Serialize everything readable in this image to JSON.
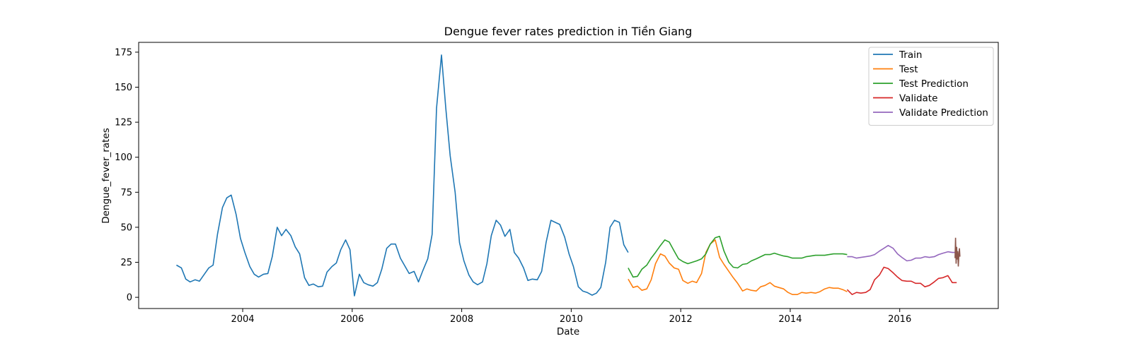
{
  "chart_data": {
    "type": "line",
    "title": "Dengue fever rates prediction in Tiền Giang",
    "xlabel": "Date",
    "ylabel": "Dengue_fever_rates",
    "xlim": [
      2002.1,
      2017.8
    ],
    "ylim": [
      -8,
      182
    ],
    "x_ticks": [
      2004,
      2006,
      2008,
      2010,
      2012,
      2014,
      2016
    ],
    "y_ticks": [
      0,
      25,
      50,
      75,
      100,
      125,
      150,
      175
    ],
    "grid": false,
    "legend": "top-right",
    "series": [
      {
        "name": "Train",
        "color": "#1f77b4",
        "x": [
          2002.79,
          2002.88,
          2002.96,
          2003.04,
          2003.13,
          2003.21,
          2003.29,
          2003.38,
          2003.46,
          2003.54,
          2003.63,
          2003.71,
          2003.79,
          2003.88,
          2003.96,
          2004.04,
          2004.13,
          2004.21,
          2004.29,
          2004.38,
          2004.46,
          2004.54,
          2004.63,
          2004.71,
          2004.79,
          2004.88,
          2004.96,
          2005.04,
          2005.13,
          2005.21,
          2005.29,
          2005.38,
          2005.46,
          2005.54,
          2005.63,
          2005.71,
          2005.79,
          2005.88,
          2005.96,
          2006.04,
          2006.13,
          2006.21,
          2006.29,
          2006.38,
          2006.46,
          2006.54,
          2006.63,
          2006.71,
          2006.79,
          2006.88,
          2006.96,
          2007.04,
          2007.13,
          2007.21,
          2007.29,
          2007.38,
          2007.46,
          2007.54,
          2007.63,
          2007.71,
          2007.79,
          2007.88,
          2007.96,
          2008.04,
          2008.13,
          2008.21,
          2008.29,
          2008.38,
          2008.46,
          2008.54,
          2008.63,
          2008.71,
          2008.79,
          2008.88,
          2008.96,
          2009.04,
          2009.13,
          2009.21,
          2009.29,
          2009.38,
          2009.46,
          2009.54,
          2009.63,
          2009.71,
          2009.79,
          2009.88,
          2009.96,
          2010.04,
          2010.13,
          2010.21,
          2010.29,
          2010.38,
          2010.46,
          2010.54,
          2010.63,
          2010.71,
          2010.79,
          2010.88,
          2010.96,
          2011.04
        ],
        "y": [
          23,
          21,
          13,
          11,
          12.5,
          11.5,
          16,
          21,
          23,
          45,
          64,
          71,
          73,
          59,
          42,
          32,
          22,
          16.5,
          14.5,
          16.5,
          17,
          29,
          50,
          44,
          48.5,
          44,
          36,
          31,
          14,
          8.5,
          9.5,
          7.5,
          8,
          18,
          22,
          24.5,
          34,
          41,
          34,
          1,
          16.5,
          10.5,
          9,
          8,
          10.5,
          20,
          35,
          38,
          38,
          28,
          22.5,
          17,
          18.5,
          11,
          19,
          27.5,
          45,
          135,
          173,
          135,
          101,
          75,
          39,
          26,
          16,
          11,
          9,
          11,
          24,
          44,
          55,
          51.5,
          43.5,
          48.5,
          32,
          28,
          21,
          12,
          13,
          12.5,
          18.5,
          39,
          55,
          53.5,
          52,
          43,
          31,
          22,
          7.5,
          4.5,
          3.5,
          1.5,
          3,
          7,
          25,
          50,
          55,
          53.5,
          37.5,
          32
        ]
      },
      {
        "name": "Test",
        "color": "#ff7f0e",
        "x": [
          2011.04,
          2011.13,
          2011.21,
          2011.29,
          2011.38,
          2011.46,
          2011.54,
          2011.63,
          2011.71,
          2011.79,
          2011.88,
          2011.96,
          2012.04,
          2012.13,
          2012.21,
          2012.29,
          2012.38,
          2012.46,
          2012.54,
          2012.63,
          2012.71,
          2012.79,
          2012.88,
          2012.96,
          2013.04,
          2013.13,
          2013.21,
          2013.29,
          2013.38,
          2013.46,
          2013.54,
          2013.63,
          2013.71,
          2013.79,
          2013.88,
          2013.96,
          2014.04,
          2014.13,
          2014.21,
          2014.29,
          2014.38,
          2014.46,
          2014.54,
          2014.63,
          2014.71,
          2014.79,
          2014.88,
          2014.96,
          2015.04
        ],
        "y": [
          13,
          7,
          8,
          5,
          6,
          12.5,
          24,
          31,
          29.5,
          24.5,
          21,
          20,
          12,
          10,
          11.5,
          10.5,
          17,
          32,
          38,
          41,
          28.5,
          23.5,
          18.5,
          14,
          10,
          4.5,
          6,
          5,
          4.5,
          7.5,
          8.5,
          10.5,
          8,
          7,
          6,
          3.5,
          2,
          2,
          3.5,
          3,
          3.5,
          3,
          4,
          6,
          7,
          6.5,
          6.5,
          5.5,
          4
        ]
      },
      {
        "name": "Test Prediction",
        "color": "#2ca02c",
        "x": [
          2011.04,
          2011.13,
          2011.21,
          2011.29,
          2011.38,
          2011.46,
          2011.54,
          2011.63,
          2011.71,
          2011.79,
          2011.88,
          2011.96,
          2012.04,
          2012.13,
          2012.21,
          2012.29,
          2012.38,
          2012.46,
          2012.54,
          2012.63,
          2012.71,
          2012.79,
          2012.88,
          2012.96,
          2013.04,
          2013.13,
          2013.21,
          2013.29,
          2013.38,
          2013.46,
          2013.54,
          2013.63,
          2013.71,
          2013.79,
          2013.88,
          2013.96,
          2014.04,
          2014.13,
          2014.21,
          2014.29,
          2014.38,
          2014.46,
          2014.54,
          2014.63,
          2014.71,
          2014.79,
          2014.88,
          2014.96,
          2015.04
        ],
        "y": [
          21,
          14.5,
          15,
          20,
          23,
          28,
          32,
          37,
          41,
          39.5,
          33,
          27.5,
          25.5,
          24,
          25,
          26,
          27.5,
          31,
          38,
          42.5,
          43.5,
          33,
          25,
          21.5,
          21,
          23.5,
          24,
          26,
          27.5,
          29,
          30.5,
          30.5,
          31.5,
          30.5,
          29.5,
          29,
          28,
          28,
          28,
          29,
          29.5,
          30,
          30,
          30,
          30.5,
          31,
          31,
          31,
          30.5
        ]
      },
      {
        "name": "Validate",
        "color": "#d62728",
        "x": [
          2015.04,
          2015.13,
          2015.21,
          2015.29,
          2015.38,
          2015.46,
          2015.54,
          2015.63,
          2015.71,
          2015.79,
          2015.88,
          2015.96,
          2016.04,
          2016.13,
          2016.21,
          2016.29,
          2016.38,
          2016.46,
          2016.54,
          2016.63,
          2016.71,
          2016.79,
          2016.88,
          2016.96,
          2017.04
        ],
        "y": [
          5.5,
          2,
          3.5,
          3,
          3.5,
          5.5,
          12.5,
          16,
          21.5,
          20.5,
          17.5,
          14.5,
          12,
          11.5,
          11.5,
          10,
          10,
          7.5,
          8.5,
          11,
          13.5,
          14,
          15.5,
          10.5,
          10.5
        ]
      },
      {
        "name": "Validate Prediction",
        "color": "#9467bd",
        "x": [
          2015.04,
          2015.13,
          2015.21,
          2015.29,
          2015.38,
          2015.46,
          2015.54,
          2015.63,
          2015.71,
          2015.79,
          2015.88,
          2015.96,
          2016.04,
          2016.13,
          2016.21,
          2016.29,
          2016.38,
          2016.46,
          2016.54,
          2016.63,
          2016.71,
          2016.79,
          2016.88,
          2016.96,
          2017.04
        ],
        "y": [
          29,
          29,
          28,
          28.5,
          29,
          29.5,
          30.5,
          33,
          35,
          37,
          35,
          31,
          28.5,
          26,
          26.5,
          28,
          28,
          29,
          28.5,
          29,
          30.5,
          31.5,
          32.5,
          32,
          32
        ]
      }
    ],
    "annotations": [
      {
        "color": "#8c564b",
        "x": [
          2017.01,
          2017.02,
          2017.03,
          2017.04,
          2017.05,
          2017.06,
          2017.07,
          2017.08,
          2017.09,
          2017.1
        ],
        "y": [
          28,
          42.5,
          24,
          36,
          27,
          33,
          22,
          30,
          35,
          29
        ]
      }
    ]
  }
}
